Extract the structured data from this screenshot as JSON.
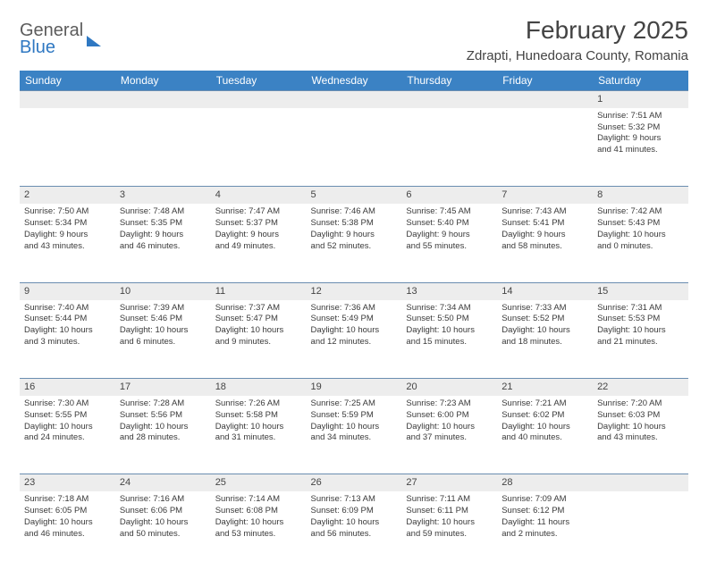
{
  "logo": {
    "line1": "General",
    "line2": "Blue"
  },
  "header": {
    "month_title": "February 2025",
    "location": "Zdrapti, Hunedoara County, Romania"
  },
  "colors": {
    "header_bg": "#3b82c4",
    "header_text": "#ffffff",
    "daynum_bg": "#ededed",
    "row_divider": "#6a8db0",
    "text": "#3a3a3a",
    "logo_gray": "#5c5c5c",
    "logo_blue": "#2f78c2"
  },
  "weekdays": [
    "Sunday",
    "Monday",
    "Tuesday",
    "Wednesday",
    "Thursday",
    "Friday",
    "Saturday"
  ],
  "weeks": [
    {
      "nums": [
        "",
        "",
        "",
        "",
        "",
        "",
        "1"
      ],
      "cells": [
        null,
        null,
        null,
        null,
        null,
        null,
        {
          "sunrise": "Sunrise: 7:51 AM",
          "sunset": "Sunset: 5:32 PM",
          "day1": "Daylight: 9 hours",
          "day2": "and 41 minutes."
        }
      ]
    },
    {
      "nums": [
        "2",
        "3",
        "4",
        "5",
        "6",
        "7",
        "8"
      ],
      "cells": [
        {
          "sunrise": "Sunrise: 7:50 AM",
          "sunset": "Sunset: 5:34 PM",
          "day1": "Daylight: 9 hours",
          "day2": "and 43 minutes."
        },
        {
          "sunrise": "Sunrise: 7:48 AM",
          "sunset": "Sunset: 5:35 PM",
          "day1": "Daylight: 9 hours",
          "day2": "and 46 minutes."
        },
        {
          "sunrise": "Sunrise: 7:47 AM",
          "sunset": "Sunset: 5:37 PM",
          "day1": "Daylight: 9 hours",
          "day2": "and 49 minutes."
        },
        {
          "sunrise": "Sunrise: 7:46 AM",
          "sunset": "Sunset: 5:38 PM",
          "day1": "Daylight: 9 hours",
          "day2": "and 52 minutes."
        },
        {
          "sunrise": "Sunrise: 7:45 AM",
          "sunset": "Sunset: 5:40 PM",
          "day1": "Daylight: 9 hours",
          "day2": "and 55 minutes."
        },
        {
          "sunrise": "Sunrise: 7:43 AM",
          "sunset": "Sunset: 5:41 PM",
          "day1": "Daylight: 9 hours",
          "day2": "and 58 minutes."
        },
        {
          "sunrise": "Sunrise: 7:42 AM",
          "sunset": "Sunset: 5:43 PM",
          "day1": "Daylight: 10 hours",
          "day2": "and 0 minutes."
        }
      ]
    },
    {
      "nums": [
        "9",
        "10",
        "11",
        "12",
        "13",
        "14",
        "15"
      ],
      "cells": [
        {
          "sunrise": "Sunrise: 7:40 AM",
          "sunset": "Sunset: 5:44 PM",
          "day1": "Daylight: 10 hours",
          "day2": "and 3 minutes."
        },
        {
          "sunrise": "Sunrise: 7:39 AM",
          "sunset": "Sunset: 5:46 PM",
          "day1": "Daylight: 10 hours",
          "day2": "and 6 minutes."
        },
        {
          "sunrise": "Sunrise: 7:37 AM",
          "sunset": "Sunset: 5:47 PM",
          "day1": "Daylight: 10 hours",
          "day2": "and 9 minutes."
        },
        {
          "sunrise": "Sunrise: 7:36 AM",
          "sunset": "Sunset: 5:49 PM",
          "day1": "Daylight: 10 hours",
          "day2": "and 12 minutes."
        },
        {
          "sunrise": "Sunrise: 7:34 AM",
          "sunset": "Sunset: 5:50 PM",
          "day1": "Daylight: 10 hours",
          "day2": "and 15 minutes."
        },
        {
          "sunrise": "Sunrise: 7:33 AM",
          "sunset": "Sunset: 5:52 PM",
          "day1": "Daylight: 10 hours",
          "day2": "and 18 minutes."
        },
        {
          "sunrise": "Sunrise: 7:31 AM",
          "sunset": "Sunset: 5:53 PM",
          "day1": "Daylight: 10 hours",
          "day2": "and 21 minutes."
        }
      ]
    },
    {
      "nums": [
        "16",
        "17",
        "18",
        "19",
        "20",
        "21",
        "22"
      ],
      "cells": [
        {
          "sunrise": "Sunrise: 7:30 AM",
          "sunset": "Sunset: 5:55 PM",
          "day1": "Daylight: 10 hours",
          "day2": "and 24 minutes."
        },
        {
          "sunrise": "Sunrise: 7:28 AM",
          "sunset": "Sunset: 5:56 PM",
          "day1": "Daylight: 10 hours",
          "day2": "and 28 minutes."
        },
        {
          "sunrise": "Sunrise: 7:26 AM",
          "sunset": "Sunset: 5:58 PM",
          "day1": "Daylight: 10 hours",
          "day2": "and 31 minutes."
        },
        {
          "sunrise": "Sunrise: 7:25 AM",
          "sunset": "Sunset: 5:59 PM",
          "day1": "Daylight: 10 hours",
          "day2": "and 34 minutes."
        },
        {
          "sunrise": "Sunrise: 7:23 AM",
          "sunset": "Sunset: 6:00 PM",
          "day1": "Daylight: 10 hours",
          "day2": "and 37 minutes."
        },
        {
          "sunrise": "Sunrise: 7:21 AM",
          "sunset": "Sunset: 6:02 PM",
          "day1": "Daylight: 10 hours",
          "day2": "and 40 minutes."
        },
        {
          "sunrise": "Sunrise: 7:20 AM",
          "sunset": "Sunset: 6:03 PM",
          "day1": "Daylight: 10 hours",
          "day2": "and 43 minutes."
        }
      ]
    },
    {
      "nums": [
        "23",
        "24",
        "25",
        "26",
        "27",
        "28",
        ""
      ],
      "cells": [
        {
          "sunrise": "Sunrise: 7:18 AM",
          "sunset": "Sunset: 6:05 PM",
          "day1": "Daylight: 10 hours",
          "day2": "and 46 minutes."
        },
        {
          "sunrise": "Sunrise: 7:16 AM",
          "sunset": "Sunset: 6:06 PM",
          "day1": "Daylight: 10 hours",
          "day2": "and 50 minutes."
        },
        {
          "sunrise": "Sunrise: 7:14 AM",
          "sunset": "Sunset: 6:08 PM",
          "day1": "Daylight: 10 hours",
          "day2": "and 53 minutes."
        },
        {
          "sunrise": "Sunrise: 7:13 AM",
          "sunset": "Sunset: 6:09 PM",
          "day1": "Daylight: 10 hours",
          "day2": "and 56 minutes."
        },
        {
          "sunrise": "Sunrise: 7:11 AM",
          "sunset": "Sunset: 6:11 PM",
          "day1": "Daylight: 10 hours",
          "day2": "and 59 minutes."
        },
        {
          "sunrise": "Sunrise: 7:09 AM",
          "sunset": "Sunset: 6:12 PM",
          "day1": "Daylight: 11 hours",
          "day2": "and 2 minutes."
        },
        null
      ]
    }
  ]
}
